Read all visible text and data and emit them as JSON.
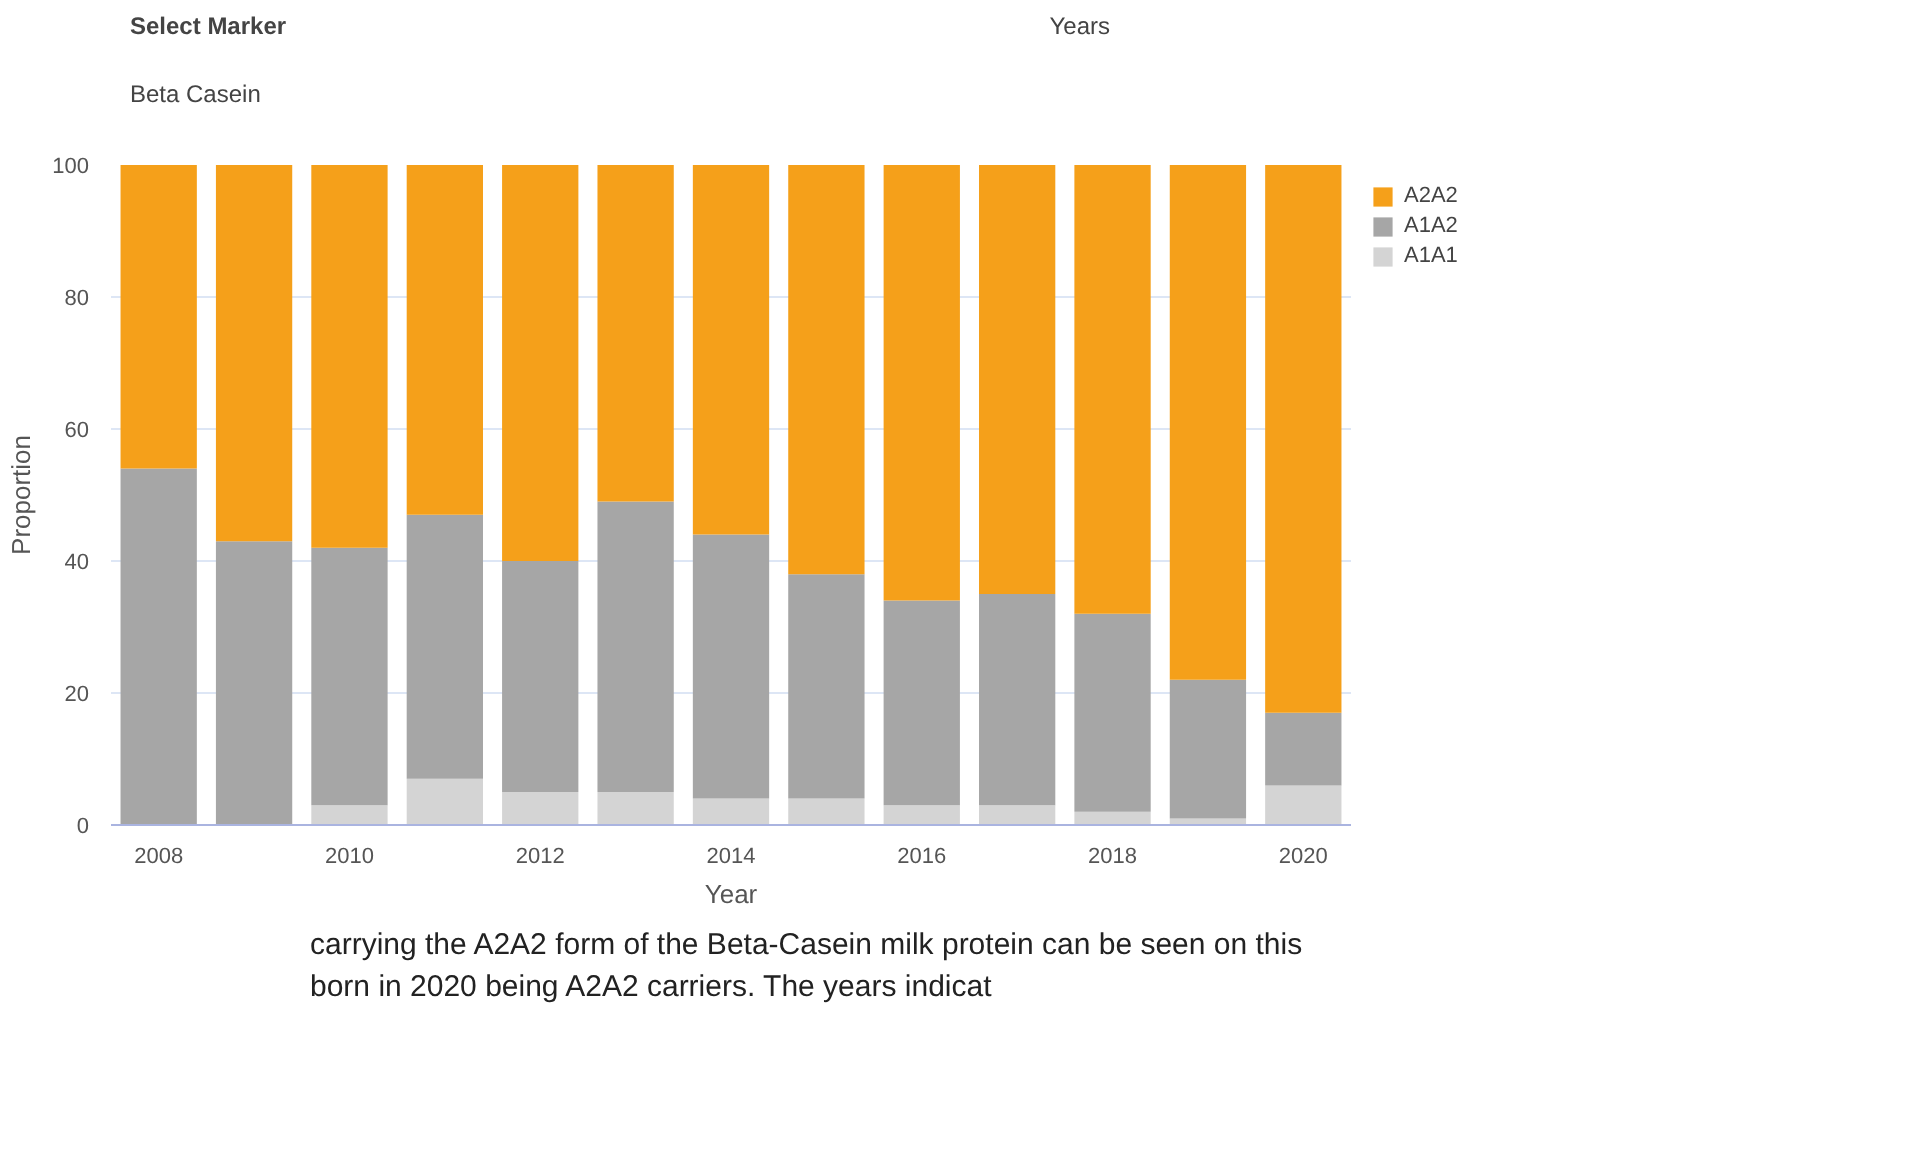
{
  "chart_data": {
    "type": "bar",
    "stacked": true,
    "xlabel": "Year",
    "ylabel": "Proportion",
    "x": [
      2008,
      2009,
      2010,
      2011,
      2012,
      2013,
      2014,
      2015,
      2016,
      2017,
      2018,
      2019,
      2020
    ],
    "xlim": [
      2007.5,
      2020.5
    ],
    "xticks": [
      2008,
      2010,
      2012,
      2014,
      2016,
      2018,
      2020
    ],
    "ylim": [
      0,
      100
    ],
    "yticks": [
      0,
      20,
      40,
      60,
      80,
      100
    ],
    "series": [
      {
        "name": "A1A1",
        "color": "#d4d4d4",
        "values": [
          0,
          0,
          3,
          7,
          5,
          5,
          4,
          4,
          3,
          3,
          2,
          1,
          6
        ]
      },
      {
        "name": "A1A2",
        "color": "#a6a6a6",
        "values": [
          54,
          43,
          39,
          40,
          35,
          44,
          40,
          34,
          31,
          32,
          30,
          21,
          11
        ]
      },
      {
        "name": "A2A2",
        "color": "#f5a01a",
        "values": [
          46,
          57,
          58,
          53,
          60,
          51,
          56,
          62,
          66,
          65,
          68,
          78,
          83
        ]
      }
    ],
    "grid": "y",
    "legend": "top right",
    "annotations": [
      "Select Marker",
      "Beta Casein",
      "Years",
      "carrying the A2A2 form of the Beta-Casein milk protein can be seen on this",
      "born in 2020 being A2A2 carriers. The years indicat"
    ]
  }
}
